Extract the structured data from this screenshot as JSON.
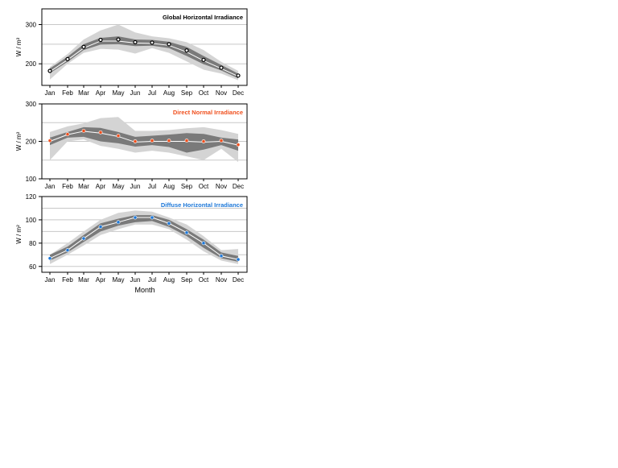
{
  "colors": {
    "outer_band": "#d4d4d4",
    "inner_band": "#7a7a7a",
    "gridline": "#c8c8c8",
    "median_line": "#ffffff",
    "axis": "#000000"
  },
  "chart_data": [
    {
      "type": "area",
      "title": "Global Horizontal Irradiance",
      "title_color": "#000000",
      "marker_color": "#000000",
      "marker_style": "hollow",
      "xlabel": "",
      "ylabel": "W / m²",
      "categories": [
        "Jan",
        "Feb",
        "Mar",
        "Apr",
        "May",
        "Jun",
        "Jul",
        "Aug",
        "Sep",
        "Oct",
        "Nov",
        "Dec"
      ],
      "ylim": [
        145,
        340
      ],
      "yticks": [
        200,
        300
      ],
      "gridlines": [
        200,
        250,
        300
      ],
      "grid": true,
      "legend": "none",
      "series": [
        {
          "name": "",
          "role": "mean",
          "values": [
            182,
            212,
            243,
            261,
            262,
            255,
            254,
            250,
            234,
            210,
            190,
            170
          ]
        },
        {
          "name": "",
          "role": "median",
          "values": [
            180,
            210,
            240,
            258,
            258,
            253,
            252,
            247,
            230,
            208,
            188,
            168
          ]
        },
        {
          "name": "",
          "role": "inner_low",
          "values": [
            176,
            205,
            235,
            249,
            250,
            245,
            246,
            240,
            220,
            199,
            183,
            163
          ]
        },
        {
          "name": "",
          "role": "inner_high",
          "values": [
            188,
            218,
            250,
            266,
            270,
            262,
            261,
            256,
            243,
            220,
            197,
            175
          ]
        },
        {
          "name": "",
          "role": "outer_low",
          "values": [
            160,
            200,
            228,
            238,
            236,
            226,
            240,
            228,
            206,
            185,
            175,
            158
          ]
        },
        {
          "name": "",
          "role": "outer_high",
          "values": [
            192,
            225,
            262,
            285,
            300,
            280,
            270,
            265,
            255,
            235,
            205,
            182
          ]
        }
      ]
    },
    {
      "type": "area",
      "title": "Direct Normal Irradiance",
      "title_color": "#f0501e",
      "marker_color": "#f0501e",
      "marker_style": "filled",
      "xlabel": "",
      "ylabel": "W / m²",
      "categories": [
        "Jan",
        "Feb",
        "Mar",
        "Apr",
        "May",
        "Jun",
        "Jul",
        "Aug",
        "Sep",
        "Oct",
        "Nov",
        "Dec"
      ],
      "ylim": [
        100,
        300
      ],
      "yticks": [
        100,
        200,
        300
      ],
      "gridlines": [
        150,
        200,
        250
      ],
      "grid": true,
      "legend": "none",
      "series": [
        {
          "name": "",
          "role": "mean",
          "values": [
            202,
            219,
            228,
            224,
            215,
            200,
            202,
            202,
            202,
            200,
            202,
            191
          ]
        },
        {
          "name": "",
          "role": "median",
          "values": [
            200,
            218,
            227,
            222,
            213,
            198,
            200,
            200,
            200,
            198,
            200,
            190
          ]
        },
        {
          "name": "",
          "role": "inner_low",
          "values": [
            190,
            210,
            212,
            200,
            195,
            186,
            190,
            185,
            170,
            178,
            190,
            175
          ]
        },
        {
          "name": "",
          "role": "inner_high",
          "values": [
            210,
            225,
            238,
            236,
            225,
            212,
            215,
            218,
            222,
            220,
            210,
            205
          ]
        },
        {
          "name": "",
          "role": "outer_low",
          "values": [
            150,
            200,
            205,
            188,
            180,
            170,
            175,
            170,
            160,
            150,
            180,
            145
          ]
        },
        {
          "name": "",
          "role": "outer_high",
          "values": [
            225,
            240,
            248,
            262,
            265,
            228,
            228,
            230,
            235,
            238,
            230,
            220
          ]
        }
      ]
    },
    {
      "type": "area",
      "title": "Diffuse Horizontal Irradiance",
      "title_color": "#1e78d8",
      "marker_color": "#1e78d8",
      "marker_style": "filled",
      "xlabel": "Month",
      "ylabel": "W / m²",
      "categories": [
        "Jan",
        "Feb",
        "Mar",
        "Apr",
        "May",
        "Jun",
        "Jul",
        "Aug",
        "Sep",
        "Oct",
        "Nov",
        "Dec"
      ],
      "ylim": [
        55,
        120
      ],
      "yticks": [
        60,
        80,
        100,
        120
      ],
      "gridlines": [
        60,
        70,
        80,
        90,
        100,
        110
      ],
      "grid": true,
      "legend": "none",
      "series": [
        {
          "name": "",
          "role": "mean",
          "values": [
            67,
            74,
            84,
            94,
            98,
            102,
            102,
            97,
            89,
            80,
            69,
            66
          ]
        },
        {
          "name": "",
          "role": "median",
          "values": [
            67,
            74,
            84,
            94,
            98,
            102,
            102,
            97,
            89,
            80,
            69,
            66
          ]
        },
        {
          "name": "",
          "role": "inner_low",
          "values": [
            65,
            72,
            81,
            90,
            95,
            98,
            99,
            94,
            86,
            76,
            67,
            64
          ]
        },
        {
          "name": "",
          "role": "inner_high",
          "values": [
            70,
            77,
            87,
            97,
            101,
            104,
            104,
            100,
            92,
            83,
            72,
            69
          ]
        },
        {
          "name": "",
          "role": "outer_low",
          "values": [
            62,
            70,
            78,
            87,
            92,
            96,
            96,
            92,
            83,
            73,
            65,
            62
          ]
        },
        {
          "name": "",
          "role": "outer_high",
          "values": [
            70,
            80,
            90,
            100,
            106,
            108,
            107,
            102,
            96,
            86,
            74,
            75
          ]
        }
      ]
    }
  ]
}
